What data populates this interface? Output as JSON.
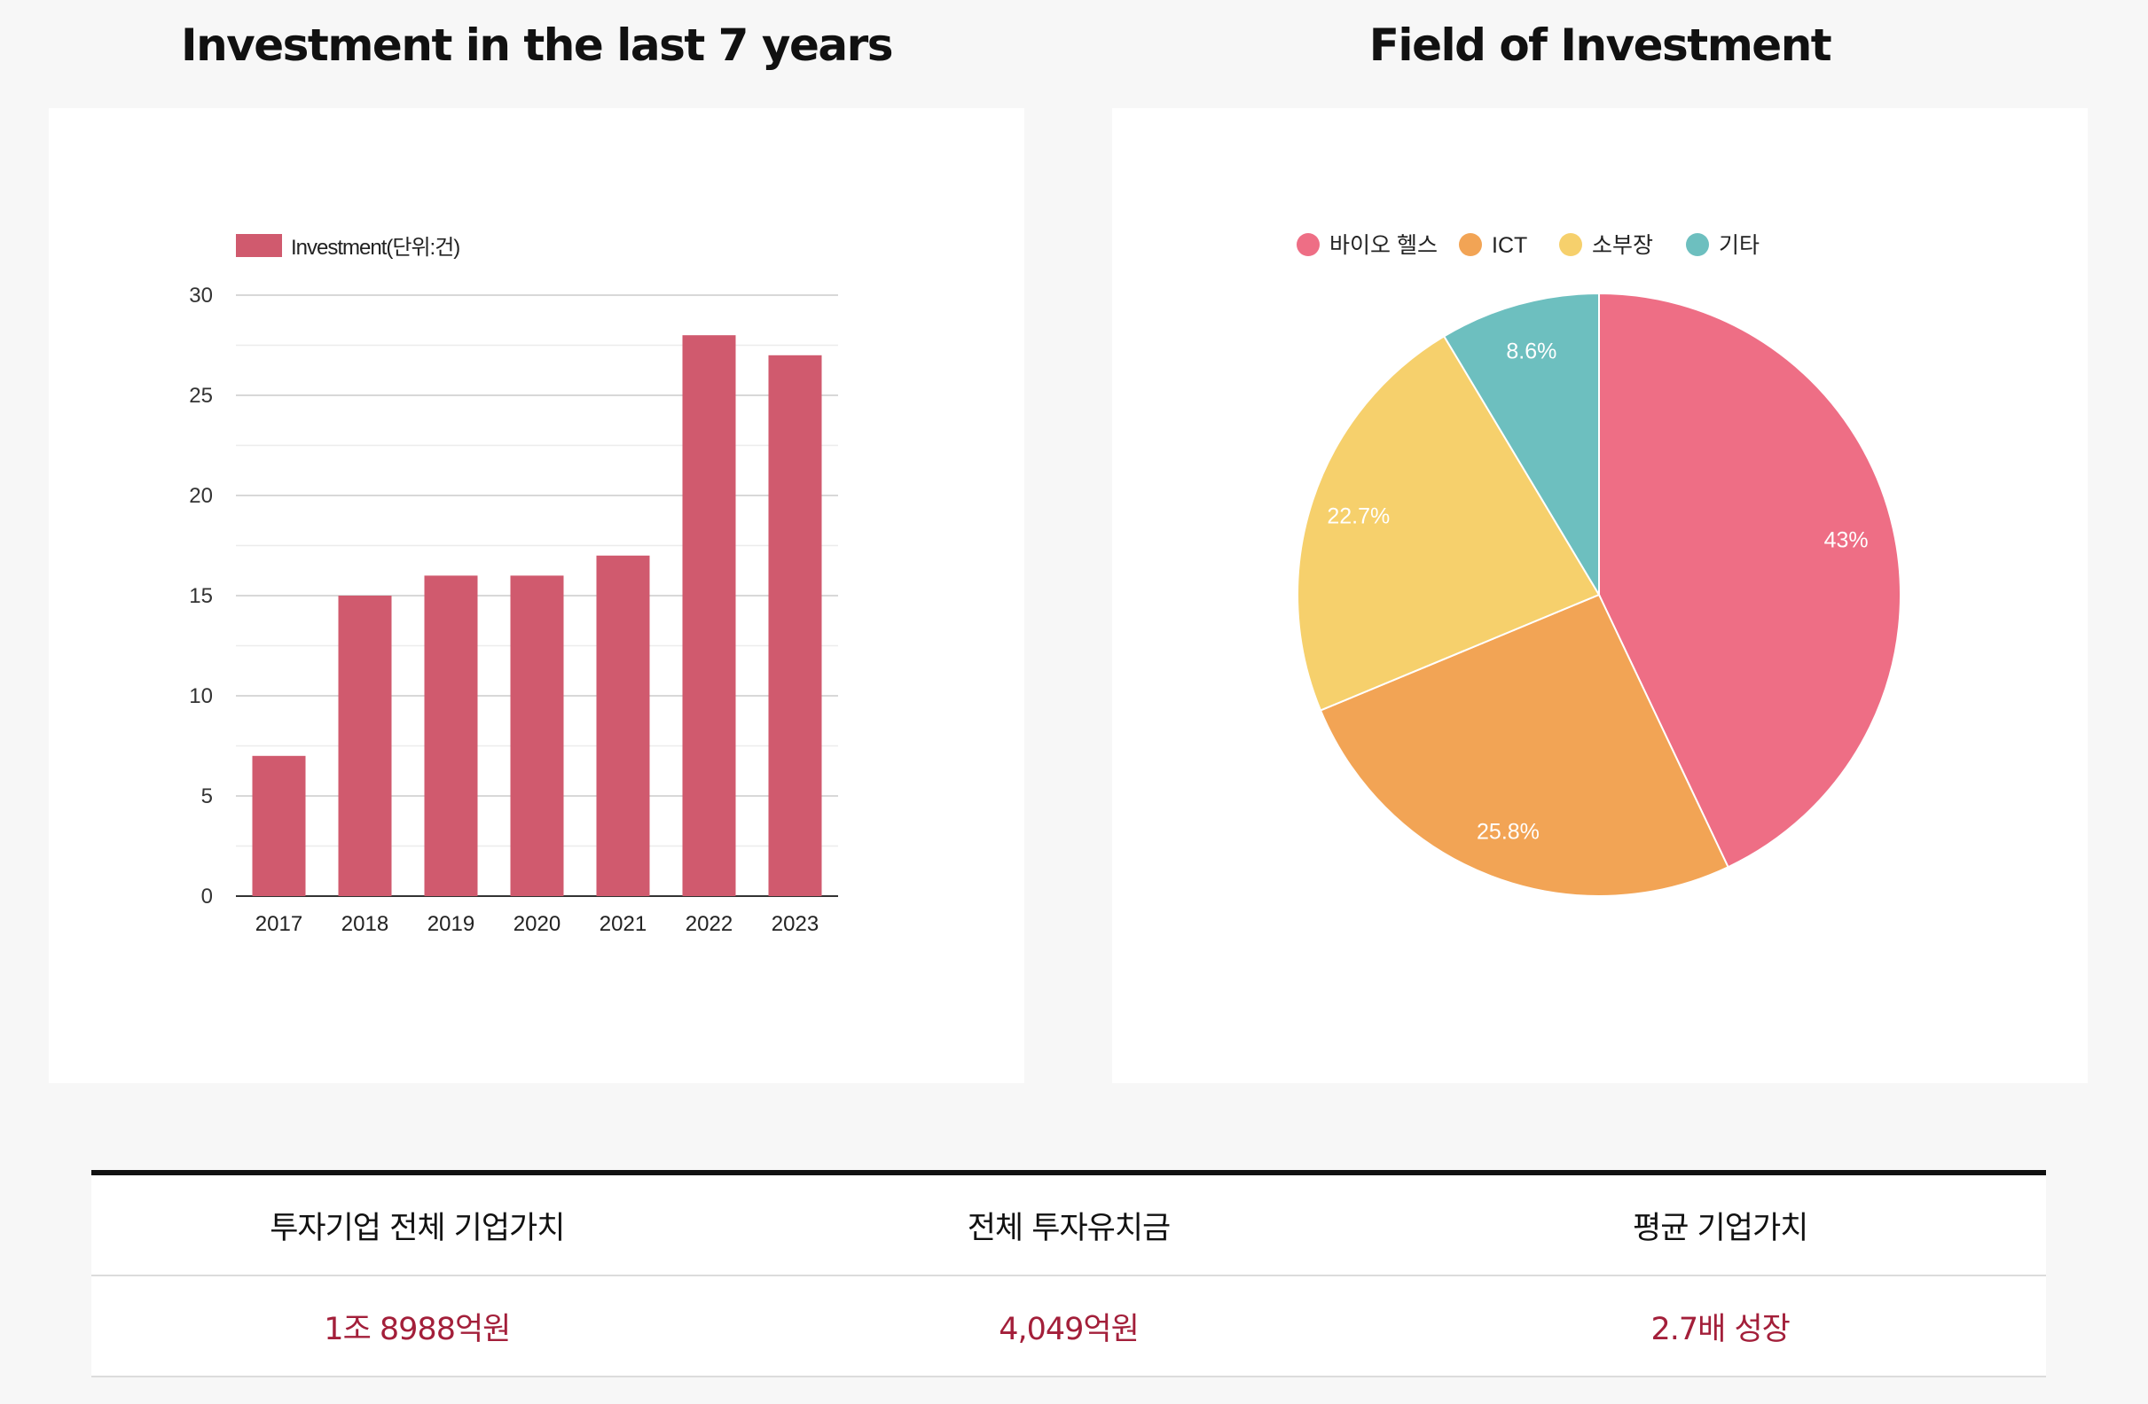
{
  "bar_title": "Investment in the last 7 years",
  "pie_title": "Field of Investment",
  "colors": {
    "bar": "#d05a6e",
    "pie": [
      "#ee6e85",
      "#f2a455",
      "#f6d06c",
      "#6dbfbf"
    ],
    "stat_value": "#a31f3a"
  },
  "chart_data": [
    {
      "type": "bar",
      "title": "Investment in the last 7 years",
      "categories": [
        "2017",
        "2018",
        "2019",
        "2020",
        "2021",
        "2022",
        "2023"
      ],
      "series": [
        {
          "name": "Investment(단위:건)",
          "values": [
            7,
            15,
            16,
            16,
            17,
            28,
            27
          ]
        }
      ],
      "yticks": [
        "0",
        "5",
        "10",
        "15",
        "20",
        "25",
        "30"
      ],
      "ylim": [
        0,
        30
      ],
      "grid": true,
      "legend": "top-left"
    },
    {
      "type": "pie",
      "title": "Field of Investment",
      "labels": [
        "바이오 헬스",
        "ICT",
        "소부장",
        "기타"
      ],
      "values": [
        43,
        25.8,
        22.7,
        8.6
      ],
      "value_labels": [
        "43%",
        "25.8%",
        "22.7%",
        "8.6%"
      ],
      "legend": "top"
    }
  ],
  "stats": {
    "headers": [
      "투자기업 전체 기업가치",
      "전체 투자유치금",
      "평균 기업가치"
    ],
    "values": [
      "1조 8988억원",
      "4,049억원",
      "2.7배 성장"
    ]
  }
}
